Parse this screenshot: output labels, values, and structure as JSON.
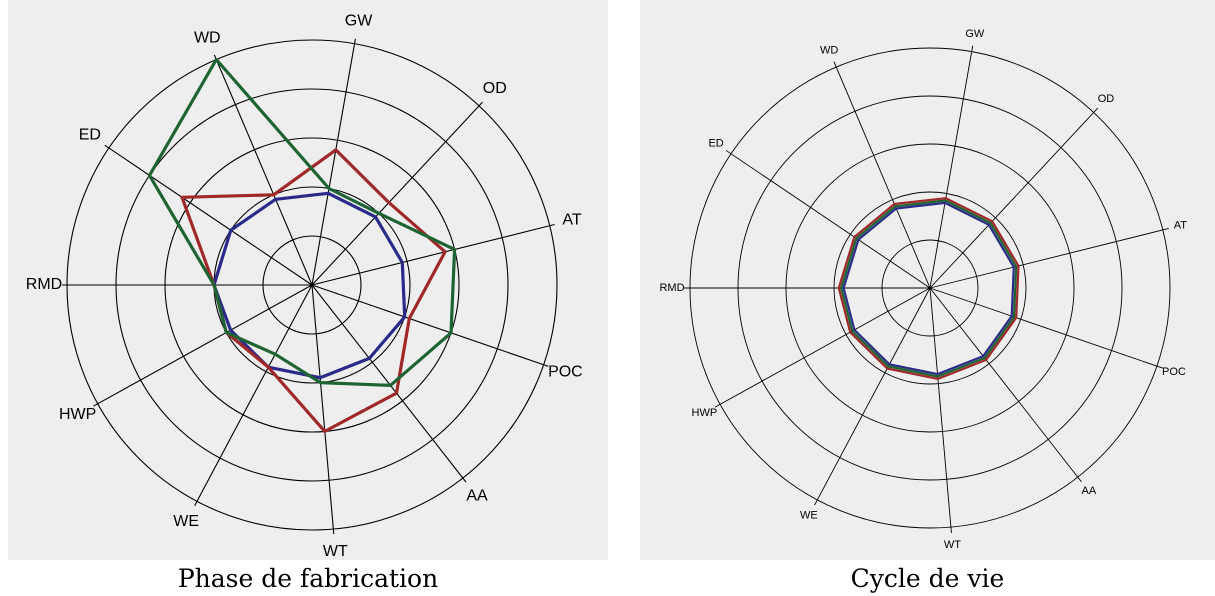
{
  "chart_data": [
    {
      "type": "radar",
      "caption": "Phase de fabrication",
      "axes": [
        "GW",
        "OD",
        "AT",
        "POC",
        "AA",
        "WT",
        "WE",
        "HWP",
        "RMD",
        "ED",
        "WD"
      ],
      "rings": 5,
      "rmax": 5,
      "grid": true,
      "series": [
        {
          "color": "#2a2a8a",
          "values": [
            1.9,
            1.9,
            1.9,
            2.0,
            1.9,
            1.9,
            1.9,
            1.9,
            2.0,
            2.0,
            1.9
          ]
        },
        {
          "color": "#a02828",
          "values": [
            2.8,
            2.3,
            2.8,
            2.1,
            2.8,
            3.0,
            1.9,
            2.0,
            2.0,
            3.2,
            2.0
          ]
        },
        {
          "color": "#1e6432",
          "values": [
            2.0,
            2.0,
            3.0,
            3.0,
            2.6,
            2.0,
            1.6,
            2.0,
            2.0,
            4.0,
            5.0
          ]
        }
      ]
    },
    {
      "type": "radar",
      "caption": "Cycle de vie",
      "axes": [
        "GW",
        "OD",
        "AT",
        "POC",
        "AA",
        "WT",
        "WE",
        "HWP",
        "RMD",
        "ED",
        "WD"
      ],
      "rings": 5,
      "rmax": 5,
      "grid": true,
      "series": [
        {
          "color": "#2a2a8a",
          "values": [
            1.8,
            1.8,
            1.8,
            1.8,
            1.8,
            1.8,
            1.8,
            1.8,
            1.8,
            1.8,
            1.8
          ]
        },
        {
          "color": "#1e6432",
          "values": [
            1.85,
            1.85,
            1.85,
            1.85,
            1.85,
            1.85,
            1.85,
            1.85,
            1.85,
            1.85,
            1.85
          ]
        },
        {
          "color": "#a02828",
          "values": [
            1.9,
            1.9,
            1.9,
            1.9,
            1.9,
            1.9,
            1.9,
            1.9,
            1.9,
            1.9,
            1.9
          ]
        }
      ]
    }
  ]
}
